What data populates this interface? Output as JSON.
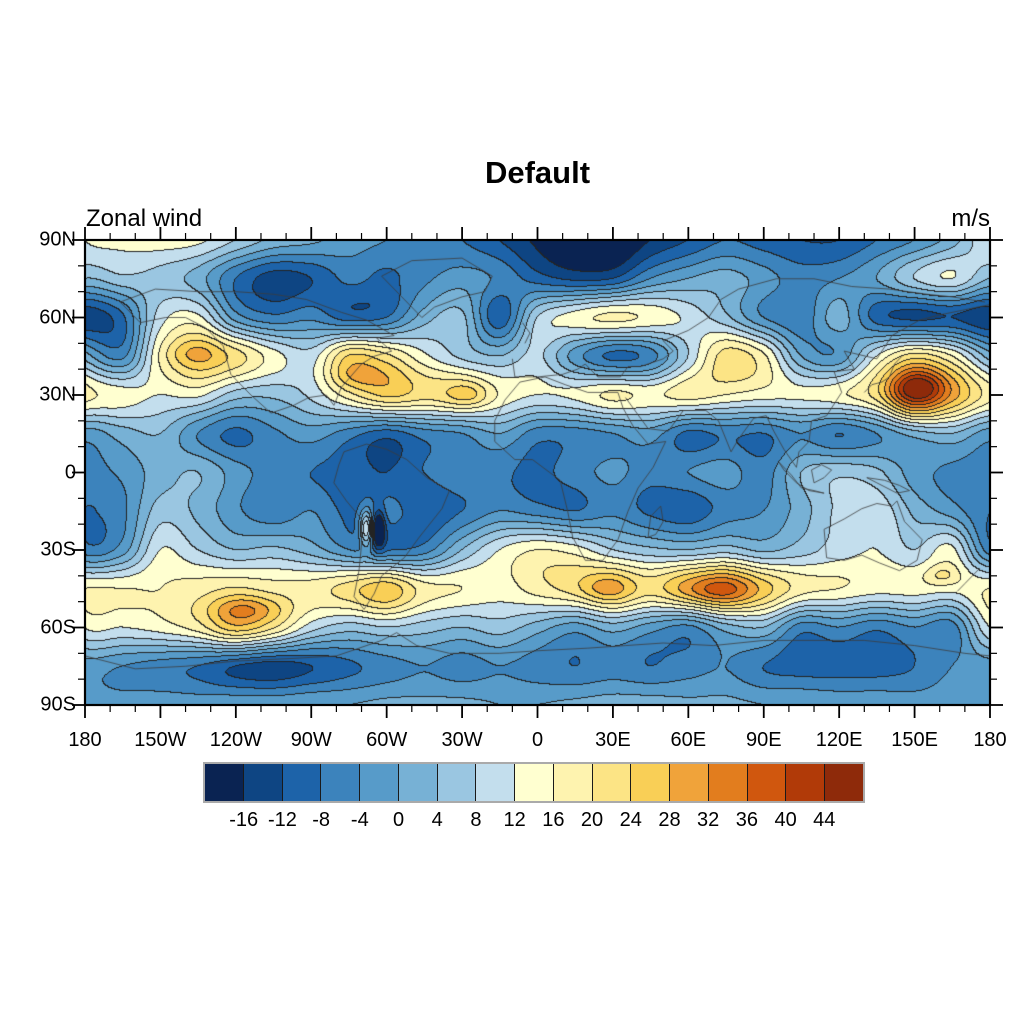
{
  "title": "Default",
  "subtitle_left": "Zonal wind",
  "subtitle_right": "m/s",
  "x_axis": {
    "min": -180,
    "max": 180,
    "major_step": 30,
    "minor_step": 10,
    "tick_labels": [
      "180",
      "150W",
      "120W",
      "90W",
      "60W",
      "30W",
      "0",
      "30E",
      "60E",
      "90E",
      "120E",
      "150E",
      "180"
    ]
  },
  "y_axis": {
    "min": -90,
    "max": 90,
    "major_step": 30,
    "minor_step": 10,
    "tick_labels": [
      "90N",
      "60N",
      "30N",
      "0",
      "30S",
      "60S",
      "90S"
    ]
  },
  "colorbar": {
    "labels": [
      "-16",
      "-12",
      "-8",
      "-4",
      "0",
      "4",
      "8",
      "12",
      "16",
      "20",
      "24",
      "28",
      "32",
      "36",
      "40",
      "44"
    ],
    "colors": [
      "#0a2352",
      "#0e4583",
      "#1d63a9",
      "#3c83bc",
      "#579bc9",
      "#77b1d5",
      "#9ac6e1",
      "#c3deed",
      "#ffffd0",
      "#fef3af",
      "#fce485",
      "#f9cf56",
      "#f0a33a",
      "#e27d1e",
      "#d0570e",
      "#b13a08",
      "#8e2a0a"
    ],
    "frame_color": "#aaaaaa",
    "divider_color": "#1a1a1a"
  },
  "chart_data": {
    "type": "heatmap",
    "title": "Default",
    "left_label": "Zonal wind",
    "units": "m/s",
    "projection": "cylindrical-equidistant",
    "xlim": [
      -180,
      180
    ],
    "ylim": [
      -90,
      90
    ],
    "levels": [
      -16,
      -12,
      -8,
      -4,
      0,
      4,
      8,
      12,
      16,
      20,
      24,
      28,
      32,
      36,
      40,
      44
    ],
    "lons": [
      -180,
      -165,
      -150,
      -135,
      -120,
      -105,
      -90,
      -75,
      -60,
      -45,
      -30,
      -15,
      0,
      15,
      30,
      45,
      60,
      75,
      90,
      105,
      120,
      135,
      150,
      165
    ],
    "lats": [
      90,
      75,
      60,
      45,
      30,
      15,
      0,
      -15,
      -30,
      -45,
      -60,
      -75,
      -90
    ],
    "values": [
      [
        12,
        13,
        14,
        13,
        8,
        3,
        1,
        -2,
        -4,
        -6,
        -8,
        -12,
        -17,
        -21,
        -22,
        -16,
        -12,
        -8,
        -10,
        -12,
        -12,
        -8,
        -4,
        2
      ],
      [
        4,
        7,
        6,
        2,
        -8,
        -14,
        -12,
        -7,
        -9,
        -5,
        -2,
        -5,
        -10,
        -13,
        -12,
        -4,
        0,
        2,
        -2,
        -6,
        -4,
        0,
        8,
        12
      ],
      [
        -15,
        -9,
        10,
        13,
        -2,
        -7,
        -5,
        -10,
        -8,
        2,
        5,
        -11,
        8,
        14,
        17,
        15,
        11,
        5,
        -4,
        -7,
        2,
        -10,
        -13,
        -12
      ],
      [
        2,
        -5,
        16,
        26,
        22,
        14,
        10,
        24,
        21,
        13,
        7,
        4,
        9,
        -2,
        -9,
        -6,
        8,
        22,
        17,
        0,
        -3,
        12,
        22,
        16
      ],
      [
        18,
        14,
        12,
        13,
        6,
        5,
        9,
        18,
        25,
        22,
        22,
        15,
        12,
        13,
        17,
        15,
        18,
        16,
        14,
        13,
        15,
        22,
        42,
        30
      ],
      [
        -2,
        2,
        4,
        -4,
        -9,
        -5,
        -2,
        -6,
        -10,
        -6,
        -4,
        0,
        -6,
        -6,
        -4,
        -2,
        -9,
        -7,
        -8,
        -4,
        -8,
        -4,
        2,
        4
      ],
      [
        -6,
        -3,
        2,
        4,
        -2,
        -6,
        -8,
        -10,
        -12,
        -8,
        -5,
        -7,
        -9,
        -6,
        -3,
        -6,
        -4,
        -2,
        -6,
        4,
        7,
        5,
        -2,
        -5
      ],
      [
        -8,
        -5,
        6,
        3,
        -3,
        -7,
        -4,
        -9,
        -6,
        -11,
        -8,
        -4,
        -6,
        -8,
        -5,
        -9,
        -11,
        -6,
        -4,
        2,
        9,
        11,
        3,
        -2
      ],
      [
        -6,
        -2,
        12,
        8,
        4,
        5,
        2,
        -4,
        -8,
        -6,
        4,
        12,
        16,
        14,
        8,
        5,
        4,
        6,
        3,
        6,
        10,
        12,
        8,
        13
      ],
      [
        16,
        16,
        16,
        18,
        20,
        18,
        18,
        22,
        27,
        18,
        16,
        14,
        18,
        22,
        27,
        22,
        29,
        34,
        26,
        18,
        16,
        14,
        14,
        13
      ],
      [
        12,
        12,
        14,
        18,
        26,
        20,
        10,
        6,
        8,
        6,
        4,
        6,
        2,
        -2,
        2,
        -2,
        -5,
        2,
        4,
        -6,
        -4,
        -7,
        -4,
        -6
      ],
      [
        -2,
        -4,
        -6,
        -8,
        -12,
        -14,
        -12,
        -9,
        -6,
        -4,
        -6,
        -4,
        -6,
        -8,
        -6,
        -8,
        -6,
        -4,
        -8,
        -10,
        -10,
        -10,
        -8,
        -4
      ],
      [
        -3,
        -3,
        -2,
        -2,
        -1,
        -1,
        0,
        0,
        1,
        1,
        1,
        0,
        0,
        1,
        2,
        2,
        1,
        1,
        0,
        0,
        -1,
        -1,
        -2,
        -2
      ]
    ],
    "anomalies": [
      {
        "lon": 152,
        "lat": 33,
        "amp": 8,
        "rlon": 10,
        "rlat": 5
      },
      {
        "lon": -68,
        "lat": -22,
        "amp": 20,
        "rlon": 2.5,
        "rlat": 7
      },
      {
        "lon": -63,
        "lat": -22,
        "amp": -18,
        "rlon": 2.5,
        "rlat": 7
      },
      {
        "lon": -115,
        "lat": -53,
        "amp": 7,
        "rlon": 14,
        "rlat": 5
      },
      {
        "lon": 72,
        "lat": -46,
        "amp": 5,
        "rlon": 12,
        "rlat": 5
      },
      {
        "lon": 27,
        "lat": -45,
        "amp": 4,
        "rlon": 9,
        "rlat": 5
      },
      {
        "lon": -137,
        "lat": 46,
        "amp": 4,
        "rlon": 10,
        "rlat": 5
      },
      {
        "lon": -72,
        "lat": 37,
        "amp": 4,
        "rlon": 10,
        "rlat": 5
      },
      {
        "lon": -27,
        "lat": 30,
        "amp": 5,
        "rlon": 8,
        "rlat": 5
      },
      {
        "lon": 161,
        "lat": -40,
        "amp": 6,
        "rlon": 7,
        "rlat": 4
      }
    ]
  },
  "coastlines": [
    [
      [
        -166,
        66
      ],
      [
        -158,
        58
      ],
      [
        -148,
        60
      ],
      [
        -140,
        60
      ],
      [
        -132,
        56
      ],
      [
        -125,
        49
      ],
      [
        -122,
        38
      ],
      [
        -114,
        30
      ],
      [
        -106,
        23
      ],
      [
        -97,
        26
      ],
      [
        -91,
        29
      ],
      [
        -84,
        30
      ],
      [
        -81,
        26
      ],
      [
        -78,
        33
      ],
      [
        -70,
        42
      ],
      [
        -65,
        45
      ],
      [
        -58,
        47
      ],
      [
        -64,
        52
      ],
      [
        -57,
        53
      ],
      [
        -68,
        59
      ],
      [
        -78,
        62
      ],
      [
        -92,
        67
      ],
      [
        -105,
        69
      ],
      [
        -120,
        70
      ],
      [
        -135,
        70
      ],
      [
        -152,
        71
      ],
      [
        -166,
        66
      ]
    ],
    [
      [
        -77,
        8
      ],
      [
        -68,
        11
      ],
      [
        -60,
        9
      ],
      [
        -52,
        5
      ],
      [
        -44,
        -2
      ],
      [
        -35,
        -7
      ],
      [
        -38,
        -14
      ],
      [
        -47,
        -25
      ],
      [
        -53,
        -33
      ],
      [
        -62,
        -40
      ],
      [
        -65,
        -47
      ],
      [
        -69,
        -53
      ],
      [
        -73,
        -48
      ],
      [
        -71,
        -38
      ],
      [
        -70,
        -28
      ],
      [
        -70,
        -18
      ],
      [
        -76,
        -11
      ],
      [
        -81,
        -4
      ],
      [
        -79,
        3
      ],
      [
        -77,
        8
      ]
    ],
    [
      [
        -7,
        35
      ],
      [
        3,
        37
      ],
      [
        11,
        34
      ],
      [
        20,
        31
      ],
      [
        32,
        31
      ],
      [
        34,
        25
      ],
      [
        38,
        18
      ],
      [
        44,
        11
      ],
      [
        51,
        12
      ],
      [
        46,
        2
      ],
      [
        40,
        -6
      ],
      [
        36,
        -15
      ],
      [
        32,
        -26
      ],
      [
        26,
        -34
      ],
      [
        19,
        -34
      ],
      [
        14,
        -25
      ],
      [
        12,
        -15
      ],
      [
        9,
        -3
      ],
      [
        -2,
        5
      ],
      [
        -9,
        5
      ],
      [
        -17,
        12
      ],
      [
        -17,
        20
      ],
      [
        -13,
        28
      ],
      [
        -7,
        35
      ]
    ],
    [
      [
        -10,
        44
      ],
      [
        -9,
        37
      ],
      [
        0,
        37
      ],
      [
        10,
        38
      ],
      [
        16,
        40
      ],
      [
        19,
        42
      ],
      [
        24,
        37
      ],
      [
        33,
        37
      ],
      [
        36,
        41
      ],
      [
        41,
        41
      ],
      [
        50,
        44
      ],
      [
        54,
        47
      ],
      [
        50,
        51
      ],
      [
        60,
        55
      ],
      [
        68,
        60
      ],
      [
        73,
        67
      ],
      [
        80,
        71
      ],
      [
        95,
        75
      ],
      [
        110,
        75
      ],
      [
        125,
        72
      ],
      [
        140,
        71
      ],
      [
        155,
        69
      ],
      [
        165,
        68
      ],
      [
        178,
        66
      ]
    ],
    [
      [
        35,
        29
      ],
      [
        44,
        17
      ],
      [
        52,
        16
      ],
      [
        58,
        24
      ],
      [
        67,
        24
      ],
      [
        72,
        20
      ],
      [
        77,
        8
      ],
      [
        80,
        13
      ],
      [
        86,
        21
      ],
      [
        91,
        22
      ],
      [
        94,
        16
      ],
      [
        98,
        9
      ],
      [
        103,
        2
      ],
      [
        104,
        8
      ],
      [
        108,
        12
      ],
      [
        109,
        20
      ],
      [
        115,
        22
      ],
      [
        121,
        31
      ],
      [
        118,
        39
      ],
      [
        126,
        40
      ],
      [
        122,
        47
      ],
      [
        135,
        44
      ],
      [
        141,
        53
      ],
      [
        152,
        59
      ],
      [
        160,
        61
      ],
      [
        170,
        63
      ],
      [
        180,
        65
      ]
    ],
    [
      [
        -5,
        50
      ],
      [
        -3,
        54
      ],
      [
        -6,
        58
      ]
    ],
    [
      [
        114,
        -22
      ],
      [
        122,
        -18
      ],
      [
        129,
        -14
      ],
      [
        135,
        -12
      ],
      [
        141,
        -13
      ],
      [
        143,
        -11
      ],
      [
        146,
        -19
      ],
      [
        153,
        -26
      ],
      [
        151,
        -34
      ],
      [
        144,
        -38
      ],
      [
        136,
        -35
      ],
      [
        129,
        -32
      ],
      [
        122,
        -34
      ],
      [
        115,
        -33
      ],
      [
        114,
        -22
      ]
    ],
    [
      [
        -46,
        60
      ],
      [
        -41,
        64
      ],
      [
        -30,
        68
      ],
      [
        -21,
        70
      ],
      [
        -18,
        76
      ],
      [
        -30,
        83
      ],
      [
        -50,
        82
      ],
      [
        -62,
        76
      ],
      [
        -55,
        69
      ],
      [
        -49,
        63
      ],
      [
        -46,
        60
      ]
    ],
    [
      [
        -180,
        -71
      ],
      [
        -160,
        -76
      ],
      [
        -140,
        -75
      ],
      [
        -120,
        -73
      ],
      [
        -98,
        -72
      ],
      [
        -80,
        -71
      ],
      [
        -62,
        -65
      ],
      [
        -56,
        -62
      ],
      [
        -48,
        -67
      ],
      [
        -35,
        -70
      ],
      [
        -15,
        -70
      ],
      [
        0,
        -69
      ],
      [
        20,
        -68
      ],
      [
        35,
        -67
      ],
      [
        50,
        -66
      ],
      [
        70,
        -67
      ],
      [
        90,
        -65
      ],
      [
        110,
        -65
      ],
      [
        130,
        -65
      ],
      [
        150,
        -67
      ],
      [
        170,
        -70
      ],
      [
        180,
        -71
      ]
    ],
    [
      [
        130,
        31
      ],
      [
        133,
        34
      ],
      [
        137,
        35
      ],
      [
        140,
        37
      ],
      [
        142,
        42
      ],
      [
        145,
        45
      ]
    ],
    [
      [
        167,
        -46
      ],
      [
        170,
        -43
      ],
      [
        173,
        -40
      ],
      [
        176,
        -37
      ]
    ],
    [
      [
        44,
        -25
      ],
      [
        45,
        -17
      ],
      [
        49,
        -13
      ],
      [
        50,
        -19
      ],
      [
        47,
        -24
      ],
      [
        44,
        -25
      ]
    ],
    [
      [
        96,
        4
      ],
      [
        101,
        -1
      ],
      [
        105,
        -6
      ],
      [
        110,
        -7
      ],
      [
        114,
        -8
      ],
      [
        108,
        -7
      ],
      [
        103,
        -4
      ],
      [
        98,
        1
      ],
      [
        96,
        4
      ]
    ],
    [
      [
        110,
        -4
      ],
      [
        114,
        -2
      ],
      [
        117,
        1
      ],
      [
        113,
        3
      ],
      [
        109,
        1
      ],
      [
        110,
        -4
      ]
    ],
    [
      [
        131,
        -2
      ],
      [
        138,
        -3
      ],
      [
        144,
        -5
      ],
      [
        148,
        -7
      ],
      [
        143,
        -8
      ],
      [
        135,
        -4
      ],
      [
        131,
        -2
      ]
    ]
  ]
}
